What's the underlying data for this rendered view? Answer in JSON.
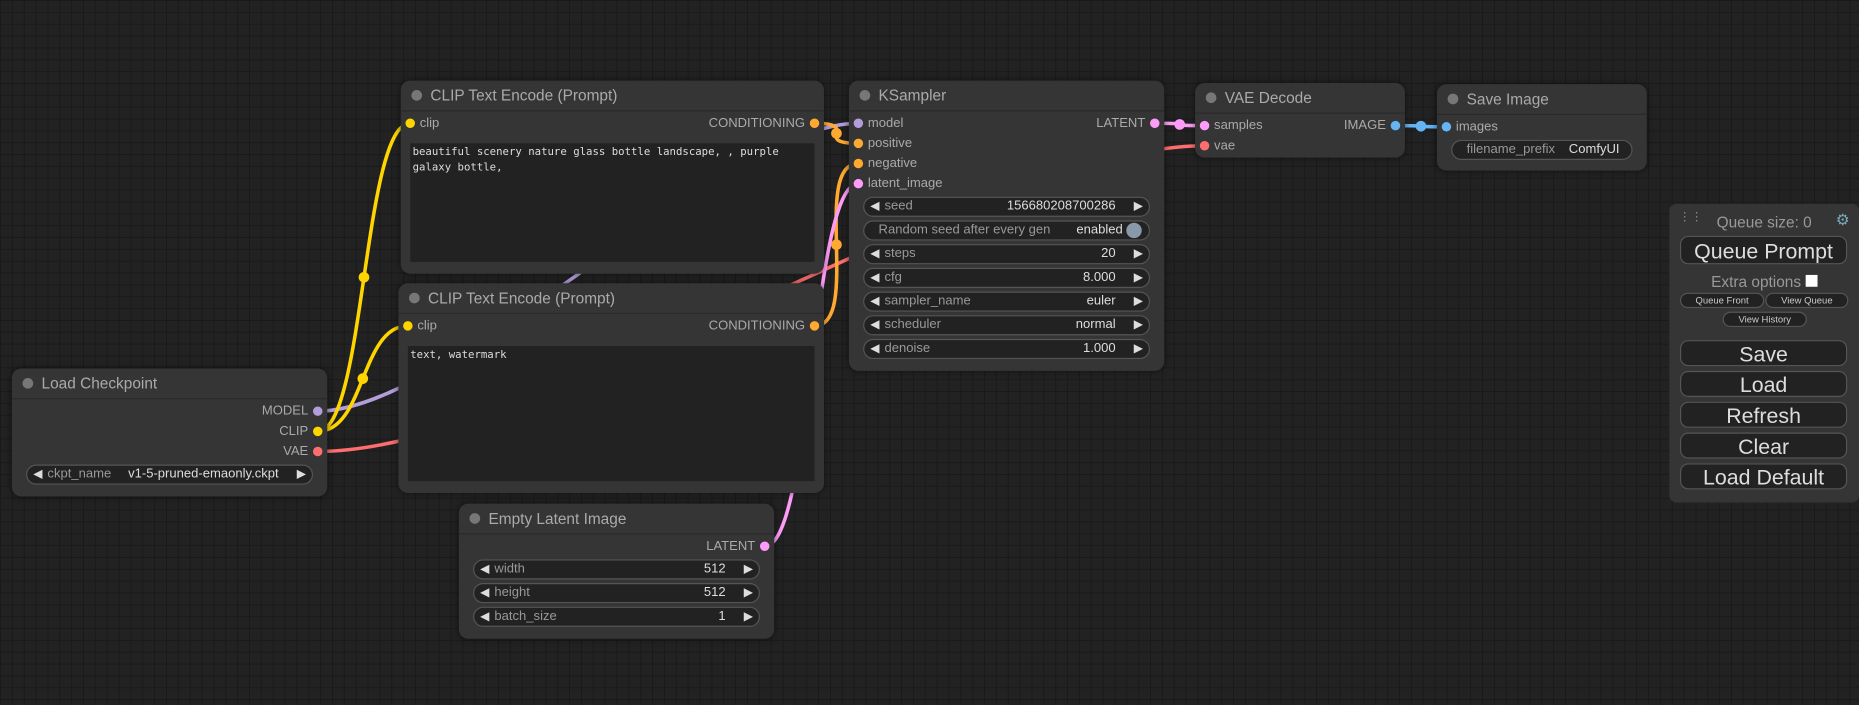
{
  "colors": {
    "MODEL": "#b39ddb",
    "CLIP": "#ffd500",
    "VAE": "#ff6e6e",
    "CONDITIONING": "#ffa931",
    "LATENT": "#ff9cf9",
    "IMAGE": "#64b5f6"
  },
  "nodes": [
    {
      "id": "load-checkpoint",
      "title": "Load Checkpoint",
      "inputs": [],
      "outputs": [
        {
          "label": "MODEL",
          "type": "MODEL"
        },
        {
          "label": "CLIP",
          "type": "CLIP"
        },
        {
          "label": "VAE",
          "type": "VAE"
        }
      ],
      "widgets": [
        {
          "name": "ckpt_name",
          "value": "v1-5-pruned-emaonly.ckpt"
        }
      ]
    },
    {
      "id": "clip-text-encode-positive",
      "title": "CLIP Text Encode (Prompt)",
      "inputs": [
        {
          "label": "clip",
          "type": "CLIP"
        }
      ],
      "outputs": [
        {
          "label": "CONDITIONING",
          "type": "CONDITIONING"
        }
      ],
      "widgets": [],
      "text": "beautiful scenery nature glass bottle landscape, , purple galaxy bottle,"
    },
    {
      "id": "clip-text-encode-negative",
      "title": "CLIP Text Encode (Prompt)",
      "inputs": [
        {
          "label": "clip",
          "type": "CLIP"
        }
      ],
      "outputs": [
        {
          "label": "CONDITIONING",
          "type": "CONDITIONING"
        }
      ],
      "widgets": [],
      "text": "text, watermark"
    },
    {
      "id": "empty-latent-image",
      "title": "Empty Latent Image",
      "inputs": [],
      "outputs": [
        {
          "label": "LATENT",
          "type": "LATENT"
        }
      ],
      "widgets": [
        {
          "name": "width",
          "value": "512"
        },
        {
          "name": "height",
          "value": "512"
        },
        {
          "name": "batch_size",
          "value": "1"
        }
      ]
    },
    {
      "id": "ksampler",
      "title": "KSampler",
      "inputs": [
        {
          "label": "model",
          "type": "MODEL"
        },
        {
          "label": "positive",
          "type": "CONDITIONING"
        },
        {
          "label": "negative",
          "type": "CONDITIONING"
        },
        {
          "label": "latent_image",
          "type": "LATENT"
        }
      ],
      "outputs": [
        {
          "label": "LATENT",
          "type": "LATENT"
        }
      ],
      "widgets": [
        {
          "name": "seed",
          "value": "156680208700286"
        },
        {
          "name": "Random seed after every gen",
          "value": "enabled",
          "toggle": true
        },
        {
          "name": "steps",
          "value": "20"
        },
        {
          "name": "cfg",
          "value": "8.000"
        },
        {
          "name": "sampler_name",
          "value": "euler"
        },
        {
          "name": "scheduler",
          "value": "normal"
        },
        {
          "name": "denoise",
          "value": "1.000"
        }
      ]
    },
    {
      "id": "vae-decode",
      "title": "VAE Decode",
      "inputs": [
        {
          "label": "samples",
          "type": "LATENT"
        },
        {
          "label": "vae",
          "type": "VAE"
        }
      ],
      "outputs": [
        {
          "label": "IMAGE",
          "type": "IMAGE"
        }
      ],
      "widgets": []
    },
    {
      "id": "save-image",
      "title": "Save Image",
      "inputs": [
        {
          "label": "images",
          "type": "IMAGE"
        }
      ],
      "outputs": [],
      "widgets": [
        {
          "name": "filename_prefix",
          "value": "ComfyUI",
          "plain": true
        }
      ]
    }
  ],
  "panel": {
    "queue_size": "Queue size: 0",
    "queue_prompt": "Queue Prompt",
    "extra_options": "Extra options",
    "queue_front": "Queue Front",
    "view_queue": "View Queue",
    "view_history": "View History",
    "save": "Save",
    "load": "Load",
    "refresh": "Refresh",
    "clear": "Clear",
    "load_default": "Load Default",
    "extra_options_checked": false
  }
}
